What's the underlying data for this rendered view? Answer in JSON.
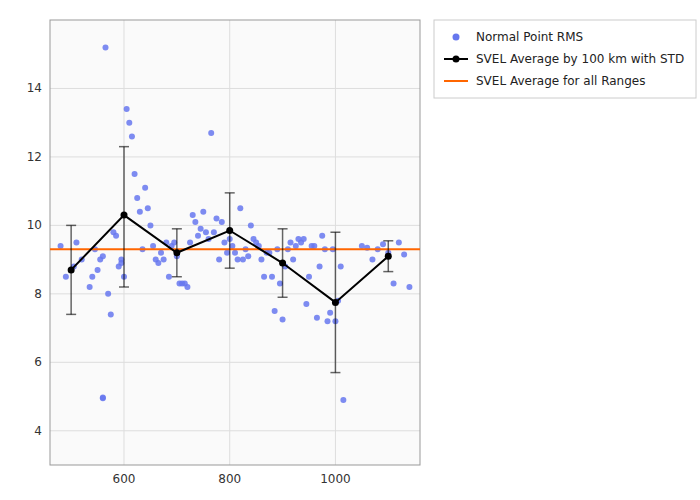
{
  "chart_data": {
    "type": "scatter",
    "series": [
      {
        "name": "Normal Point RMS",
        "type": "scatter",
        "marker": "circle",
        "color": "#6677ee",
        "x": [
          480,
          490,
          505,
          510,
          520,
          535,
          540,
          545,
          550,
          555,
          560,
          565,
          570,
          575,
          580,
          585,
          590,
          595,
          560,
          560,
          605,
          610,
          615,
          620,
          625,
          630,
          635,
          640,
          645,
          650,
          655,
          660,
          595,
          600,
          665,
          670,
          675,
          680,
          685,
          690,
          695,
          700,
          705,
          710,
          715,
          720,
          725,
          730,
          735,
          740,
          745,
          750,
          755,
          760,
          765,
          770,
          775,
          780,
          785,
          790,
          795,
          800,
          805,
          810,
          815,
          820,
          825,
          830,
          835,
          840,
          845,
          850,
          855,
          860,
          865,
          870,
          875,
          880,
          885,
          890,
          895,
          900,
          905,
          910,
          915,
          920,
          925,
          930,
          935,
          940,
          945,
          950,
          955,
          960,
          965,
          970,
          975,
          980,
          985,
          990,
          995,
          1000,
          1005,
          1010,
          1015,
          1050,
          1060,
          1070,
          1080,
          1090,
          1100,
          1110,
          1120,
          1130,
          1140
        ],
        "values": [
          9.4,
          8.5,
          8.8,
          9.5,
          9.0,
          8.2,
          8.5,
          9.3,
          8.7,
          9.0,
          9.1,
          15.2,
          8.0,
          7.4,
          9.8,
          9.7,
          8.8,
          8.9,
          4.95,
          4.97,
          13.4,
          13.0,
          12.6,
          11.5,
          10.8,
          10.4,
          9.3,
          11.1,
          10.5,
          10.0,
          9.4,
          9.0,
          9.0,
          8.5,
          8.9,
          9.2,
          9.0,
          9.5,
          8.5,
          9.4,
          9.5,
          9.1,
          8.3,
          8.3,
          8.3,
          8.2,
          9.5,
          10.3,
          10.1,
          9.7,
          9.9,
          10.4,
          9.8,
          9.6,
          12.7,
          9.8,
          10.2,
          9.0,
          10.1,
          9.5,
          9.2,
          9.6,
          9.4,
          9.2,
          9.0,
          10.5,
          9.0,
          9.3,
          9.1,
          10.0,
          9.6,
          9.5,
          9.4,
          9.0,
          8.5,
          9.2,
          9.2,
          8.5,
          7.5,
          9.3,
          8.3,
          7.25,
          8.8,
          9.3,
          9.5,
          9.0,
          9.4,
          9.6,
          9.5,
          9.6,
          7.7,
          8.5,
          9.4,
          9.4,
          7.3,
          8.8,
          9.7,
          9.3,
          7.2,
          7.45,
          9.3,
          7.2,
          7.8,
          8.8,
          4.9,
          9.4,
          9.35,
          9.0,
          9.3,
          9.45,
          9.2,
          8.3,
          9.5,
          9.15,
          8.2
        ]
      },
      {
        "name": "SVEL Average by 100 km with STD",
        "type": "line",
        "marker": "circle",
        "line_style": "solid",
        "color": "black",
        "x": [
          500,
          600,
          700,
          800,
          900,
          1000,
          1100
        ],
        "values": [
          8.7,
          10.3,
          9.2,
          9.85,
          8.9,
          7.75,
          9.1
        ],
        "err_low": [
          1.3,
          2.1,
          0.7,
          1.1,
          1.0,
          2.05,
          0.45
        ],
        "err_high": [
          1.3,
          2.0,
          0.7,
          1.1,
          1.0,
          2.05,
          0.45
        ]
      },
      {
        "name": "SVEL Average for all Ranges",
        "type": "hline",
        "line_style": "solid",
        "color": "#ff6600",
        "values": [
          9.3
        ]
      }
    ],
    "xlim": [
      460,
      1160
    ],
    "ylim": [
      3.0,
      16.0
    ],
    "xticks": [
      600,
      800,
      1000
    ],
    "yticks": [
      4,
      6,
      8,
      10,
      12,
      14
    ],
    "grid": true,
    "legend": "right"
  }
}
